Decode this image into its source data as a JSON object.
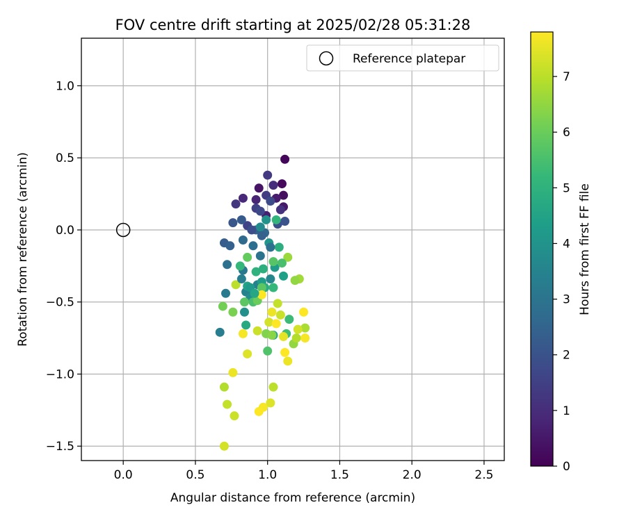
{
  "chart_data": {
    "type": "scatter",
    "title": "FOV centre drift starting at 2025/02/28 05:31:28",
    "xlabel": "Angular distance from reference (arcmin)",
    "ylabel": "Rotation from reference (arcmin)",
    "xlim": [
      -0.29,
      2.64
    ],
    "ylim": [
      -1.6,
      1.33
    ],
    "xticks": [
      0.0,
      0.5,
      1.0,
      1.5,
      2.0,
      2.5
    ],
    "xtick_labels": [
      "0.0",
      "0.5",
      "1.0",
      "1.5",
      "2.0",
      "2.5"
    ],
    "yticks": [
      -1.5,
      -1.0,
      -0.5,
      0.0,
      0.5,
      1.0
    ],
    "ytick_labels": [
      "−1.5",
      "−1.0",
      "−0.5",
      "0.0",
      "0.5",
      "1.0"
    ],
    "grid": true,
    "legend": {
      "position": "top-right",
      "entries": [
        "Reference platepar"
      ]
    },
    "reference_point": {
      "x": 0.0,
      "y": 0.0,
      "marker": "open-circle"
    },
    "colorbar": {
      "label": "Hours from first FF file",
      "range": [
        0,
        7.8
      ],
      "ticks": [
        0,
        1,
        2,
        3,
        4,
        5,
        6,
        7
      ],
      "tick_labels": [
        "0",
        "1",
        "2",
        "3",
        "4",
        "5",
        "6",
        "7"
      ],
      "colormap": "viridis",
      "colormap_stops": [
        "#440154",
        "#482878",
        "#3e4989",
        "#31688e",
        "#26828e",
        "#1f9e89",
        "#35b779",
        "#6ece58",
        "#b5de2b",
        "#fde725"
      ]
    },
    "points": [
      [
        1.12,
        0.49,
        0.1
      ],
      [
        1.1,
        0.32,
        0.2
      ],
      [
        1.11,
        0.24,
        0.3
      ],
      [
        0.94,
        0.29,
        0.4
      ],
      [
        1.11,
        0.16,
        0.5
      ],
      [
        1.06,
        0.22,
        0.6
      ],
      [
        0.99,
        0.1,
        0.7
      ],
      [
        0.92,
        0.21,
        0.8
      ],
      [
        0.83,
        0.22,
        0.9
      ],
      [
        1.04,
        0.31,
        1.0
      ],
      [
        1.09,
        0.14,
        1.1
      ],
      [
        0.78,
        0.18,
        1.2
      ],
      [
        1.0,
        0.38,
        1.3
      ],
      [
        0.99,
        0.24,
        1.4
      ],
      [
        0.92,
        0.15,
        1.5
      ],
      [
        0.86,
        0.03,
        1.6
      ],
      [
        0.95,
        0.13,
        1.7
      ],
      [
        1.02,
        0.2,
        1.8
      ],
      [
        1.07,
        0.04,
        1.9
      ],
      [
        1.12,
        0.06,
        2.0
      ],
      [
        0.76,
        0.05,
        2.1
      ],
      [
        0.82,
        0.07,
        2.2
      ],
      [
        0.7,
        -0.09,
        2.3
      ],
      [
        0.74,
        -0.11,
        2.4
      ],
      [
        0.92,
        0.0,
        2.5
      ],
      [
        0.98,
        -0.02,
        2.6
      ],
      [
        0.83,
        -0.07,
        2.7
      ],
      [
        0.9,
        -0.11,
        2.8
      ],
      [
        0.72,
        -0.24,
        2.9
      ],
      [
        0.95,
        -0.18,
        3.0
      ],
      [
        0.83,
        -0.28,
        3.1
      ],
      [
        0.71,
        -0.44,
        3.2
      ],
      [
        0.67,
        -0.71,
        3.3
      ],
      [
        0.93,
        -0.38,
        3.4
      ],
      [
        0.85,
        -0.43,
        3.5
      ],
      [
        1.02,
        -0.34,
        3.6
      ],
      [
        0.95,
        0.02,
        3.7
      ],
      [
        0.88,
        -0.47,
        3.8
      ],
      [
        0.84,
        -0.57,
        3.9
      ],
      [
        0.99,
        0.07,
        4.0
      ],
      [
        1.01,
        -0.09,
        4.1
      ],
      [
        1.05,
        -0.26,
        4.2
      ],
      [
        0.96,
        -0.36,
        4.3
      ],
      [
        1.11,
        -0.32,
        4.4
      ],
      [
        0.86,
        -0.39,
        4.5
      ],
      [
        1.04,
        -0.73,
        4.6
      ],
      [
        0.85,
        -0.66,
        4.7
      ],
      [
        0.98,
        -0.4,
        4.8
      ],
      [
        1.08,
        -0.12,
        4.9
      ],
      [
        0.92,
        -0.29,
        5.0
      ],
      [
        1.06,
        0.07,
        5.1
      ],
      [
        0.81,
        -0.25,
        5.2
      ],
      [
        1.15,
        -0.62,
        5.3
      ],
      [
        1.13,
        -0.72,
        5.4
      ],
      [
        0.9,
        -0.5,
        5.5
      ],
      [
        1.0,
        -0.84,
        5.6
      ],
      [
        1.04,
        -0.22,
        5.7
      ],
      [
        0.96,
        -0.4,
        5.8
      ],
      [
        0.86,
        -0.19,
        5.9
      ],
      [
        0.93,
        -0.49,
        6.0
      ],
      [
        0.69,
        -0.53,
        6.1
      ],
      [
        0.76,
        -0.57,
        6.2
      ],
      [
        0.99,
        -0.72,
        6.3
      ],
      [
        1.03,
        -0.73,
        6.4
      ],
      [
        1.18,
        -0.79,
        6.5
      ],
      [
        1.14,
        -0.19,
        6.6
      ],
      [
        1.22,
        -0.34,
        6.7
      ],
      [
        1.26,
        -0.68,
        6.8
      ],
      [
        1.2,
        -0.75,
        6.9
      ],
      [
        0.78,
        -0.38,
        7.0
      ],
      [
        1.07,
        -0.51,
        7.1
      ],
      [
        0.93,
        -0.7,
        7.2
      ],
      [
        1.01,
        -0.64,
        7.3
      ],
      [
        0.86,
        -0.86,
        7.4
      ],
      [
        1.11,
        -0.74,
        7.5
      ],
      [
        1.14,
        -0.91,
        7.6
      ],
      [
        0.7,
        -1.09,
        6.9
      ],
      [
        1.04,
        -1.09,
        7.0
      ],
      [
        0.72,
        -1.21,
        7.1
      ],
      [
        0.77,
        -1.29,
        7.2
      ],
      [
        0.7,
        -1.5,
        7.3
      ],
      [
        1.02,
        -1.2,
        7.4
      ],
      [
        0.76,
        -0.99,
        7.6
      ],
      [
        0.97,
        -1.23,
        7.7
      ],
      [
        0.94,
        -1.26,
        7.8
      ],
      [
        1.12,
        -0.85,
        7.8
      ],
      [
        1.26,
        -0.75,
        7.7
      ],
      [
        1.25,
        -0.57,
        7.8
      ],
      [
        1.06,
        -0.65,
        7.8
      ],
      [
        0.83,
        -0.72,
        7.7
      ],
      [
        0.96,
        -0.45,
        7.8
      ],
      [
        1.03,
        -0.57,
        7.6
      ],
      [
        1.09,
        -0.59,
        7.2
      ],
      [
        1.19,
        -0.35,
        6.5
      ],
      [
        1.21,
        -0.69,
        7.3
      ],
      [
        0.89,
        0.0,
        1.9
      ],
      [
        0.96,
        -0.04,
        2.4
      ],
      [
        1.02,
        -0.12,
        2.9
      ],
      [
        0.82,
        -0.34,
        3.3
      ],
      [
        0.88,
        -0.4,
        4.2
      ],
      [
        0.91,
        -0.44,
        4.6
      ],
      [
        0.97,
        -0.27,
        4.9
      ],
      [
        1.04,
        -0.4,
        5.2
      ],
      [
        1.1,
        -0.23,
        5.5
      ],
      [
        0.84,
        -0.5,
        5.8
      ]
    ]
  }
}
